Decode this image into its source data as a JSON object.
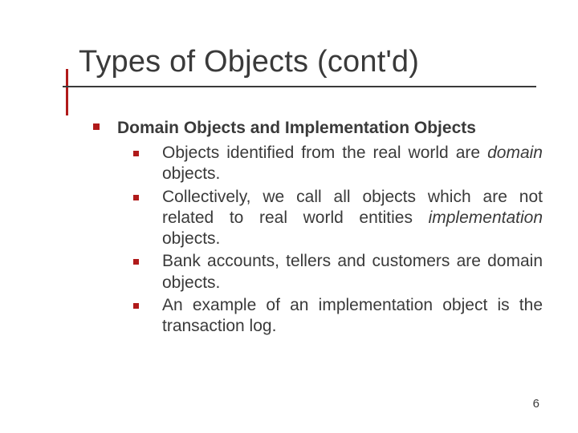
{
  "slide": {
    "title": "Types of Objects (cont'd)",
    "page_number": "6",
    "colors": {
      "accent": "#b01a1a",
      "text": "#3a3a3a",
      "background": "#ffffff"
    },
    "fonts": {
      "title_family": "Arial",
      "title_size_pt": 38,
      "body_family": "Verdana",
      "body_size_pt": 21
    },
    "heading": "Domain Objects and Implementation Objects",
    "bullets": [
      {
        "pre": "Objects identified from the real world are ",
        "em": "domain",
        "post": " objects."
      },
      {
        "pre": "Collectively, we call all objects which are not related to real world entities ",
        "em": "implementation",
        "post": " objects."
      },
      {
        "pre": "Bank accounts, tellers and customers are domain objects.",
        "em": "",
        "post": ""
      },
      {
        "pre": "An example of an implementation object is the transaction log.",
        "em": "",
        "post": ""
      }
    ]
  }
}
